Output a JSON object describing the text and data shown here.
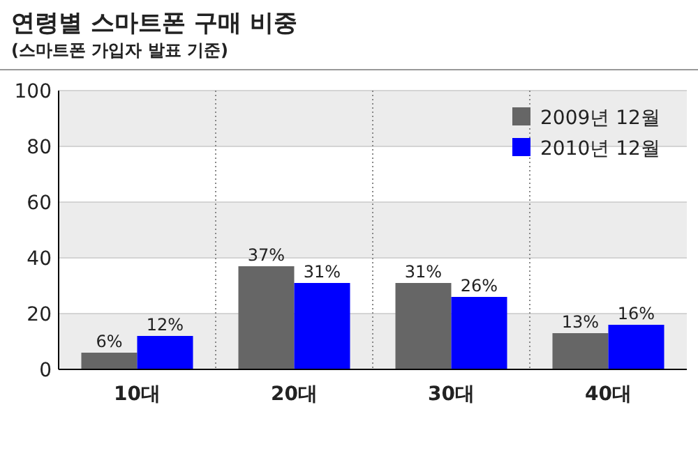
{
  "chart_data": {
    "type": "bar",
    "title": "연령별 스마트폰 구매 비중",
    "subtitle": "(스마트폰 가입자 발표 기준)",
    "categories": [
      "10대",
      "20대",
      "30대",
      "40대"
    ],
    "series": [
      {
        "name": "2009년 12월",
        "color": "#666666",
        "values": [
          6,
          37,
          31,
          13
        ],
        "value_labels": [
          "6%",
          "37%",
          "31%",
          "13%"
        ]
      },
      {
        "name": "2010년 12월",
        "color": "#0000ff",
        "values": [
          12,
          31,
          26,
          16
        ],
        "value_labels": [
          "12%",
          "31%",
          "26%",
          "16%"
        ]
      }
    ],
    "ylim": [
      0,
      100
    ],
    "yticks": [
      0,
      20,
      40,
      60,
      80,
      100
    ],
    "grid": "y",
    "legend": "top right"
  }
}
